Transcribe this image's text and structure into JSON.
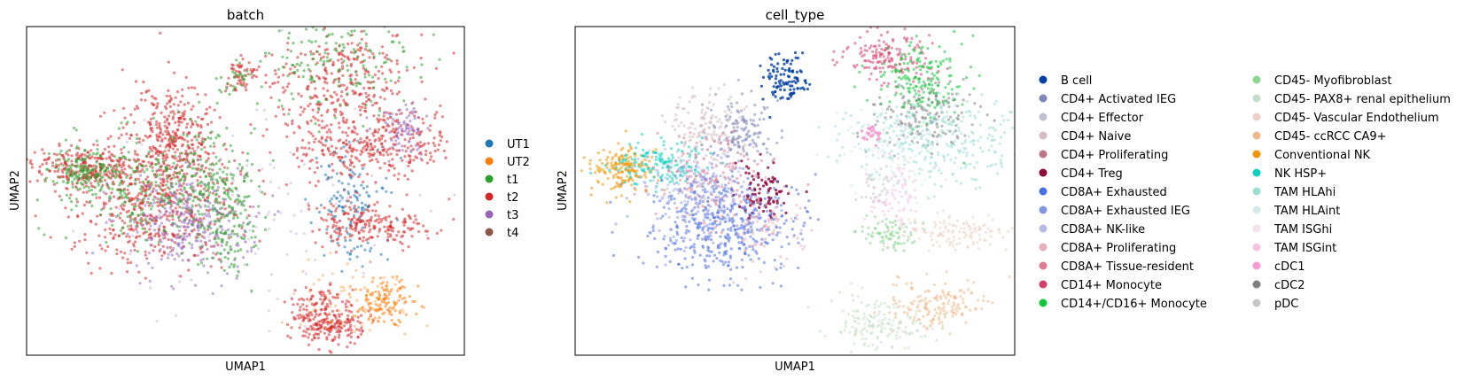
{
  "chart_data": [
    {
      "type": "scatter",
      "title": "batch",
      "xlabel": "UMAP1",
      "ylabel": "UMAP2",
      "legend_position": "right",
      "grid": false,
      "series": [
        {
          "name": "UT1",
          "color": "#1f77b4"
        },
        {
          "name": "UT2",
          "color": "#ff7f0e"
        },
        {
          "name": "t1",
          "color": "#2ca02c"
        },
        {
          "name": "t2",
          "color": "#d62728"
        },
        {
          "name": "t3",
          "color": "#9467bd"
        },
        {
          "name": "t4",
          "color": "#8c564b"
        }
      ]
    },
    {
      "type": "scatter",
      "title": "cell_type",
      "xlabel": "UMAP1",
      "ylabel": "UMAP2",
      "legend_position": "right",
      "grid": false,
      "series": [
        {
          "name": "B cell",
          "color": "#023fa5"
        },
        {
          "name": "CD4+ Activated IEG",
          "color": "#7d87b9"
        },
        {
          "name": "CD4+ Effector",
          "color": "#bec1d4"
        },
        {
          "name": "CD4+ Naive",
          "color": "#d6bcc0"
        },
        {
          "name": "CD4+ Proliferating",
          "color": "#bb7784"
        },
        {
          "name": "CD4+ Treg",
          "color": "#8e063b"
        },
        {
          "name": "CD8A+ Exhausted",
          "color": "#4a6fe3"
        },
        {
          "name": "CD8A+ Exhausted IEG",
          "color": "#8595e1"
        },
        {
          "name": "CD8A+ NK-like",
          "color": "#b5bbe3"
        },
        {
          "name": "CD8A+ Proliferating",
          "color": "#e6afb9"
        },
        {
          "name": "CD8A+ Tissue-resident",
          "color": "#e07b91"
        },
        {
          "name": "CD14+ Monocyte",
          "color": "#d33f6a"
        },
        {
          "name": "CD14+/CD16+ Monocyte",
          "color": "#11c638"
        },
        {
          "name": "CD45- Myofibroblast",
          "color": "#8dd593"
        },
        {
          "name": "CD45- PAX8+ renal epithelium",
          "color": "#c6dec7"
        },
        {
          "name": "CD45- Vascular Endothelium",
          "color": "#ead3c6"
        },
        {
          "name": "CD45- ccRCC CA9+",
          "color": "#f0b98d"
        },
        {
          "name": "Conventional NK",
          "color": "#ef9708"
        },
        {
          "name": "NK HSP+",
          "color": "#0fcfc0"
        },
        {
          "name": "TAM HLAhi",
          "color": "#9cded6"
        },
        {
          "name": "TAM HLAint",
          "color": "#d5eae7"
        },
        {
          "name": "TAM ISGhi",
          "color": "#f3e1eb"
        },
        {
          "name": "TAM ISGint",
          "color": "#f6c4e1"
        },
        {
          "name": "cDC1",
          "color": "#f79cd4"
        },
        {
          "name": "cDC2",
          "color": "#7f7f7f"
        },
        {
          "name": "pDC",
          "color": "#c7c7c7"
        }
      ]
    }
  ]
}
